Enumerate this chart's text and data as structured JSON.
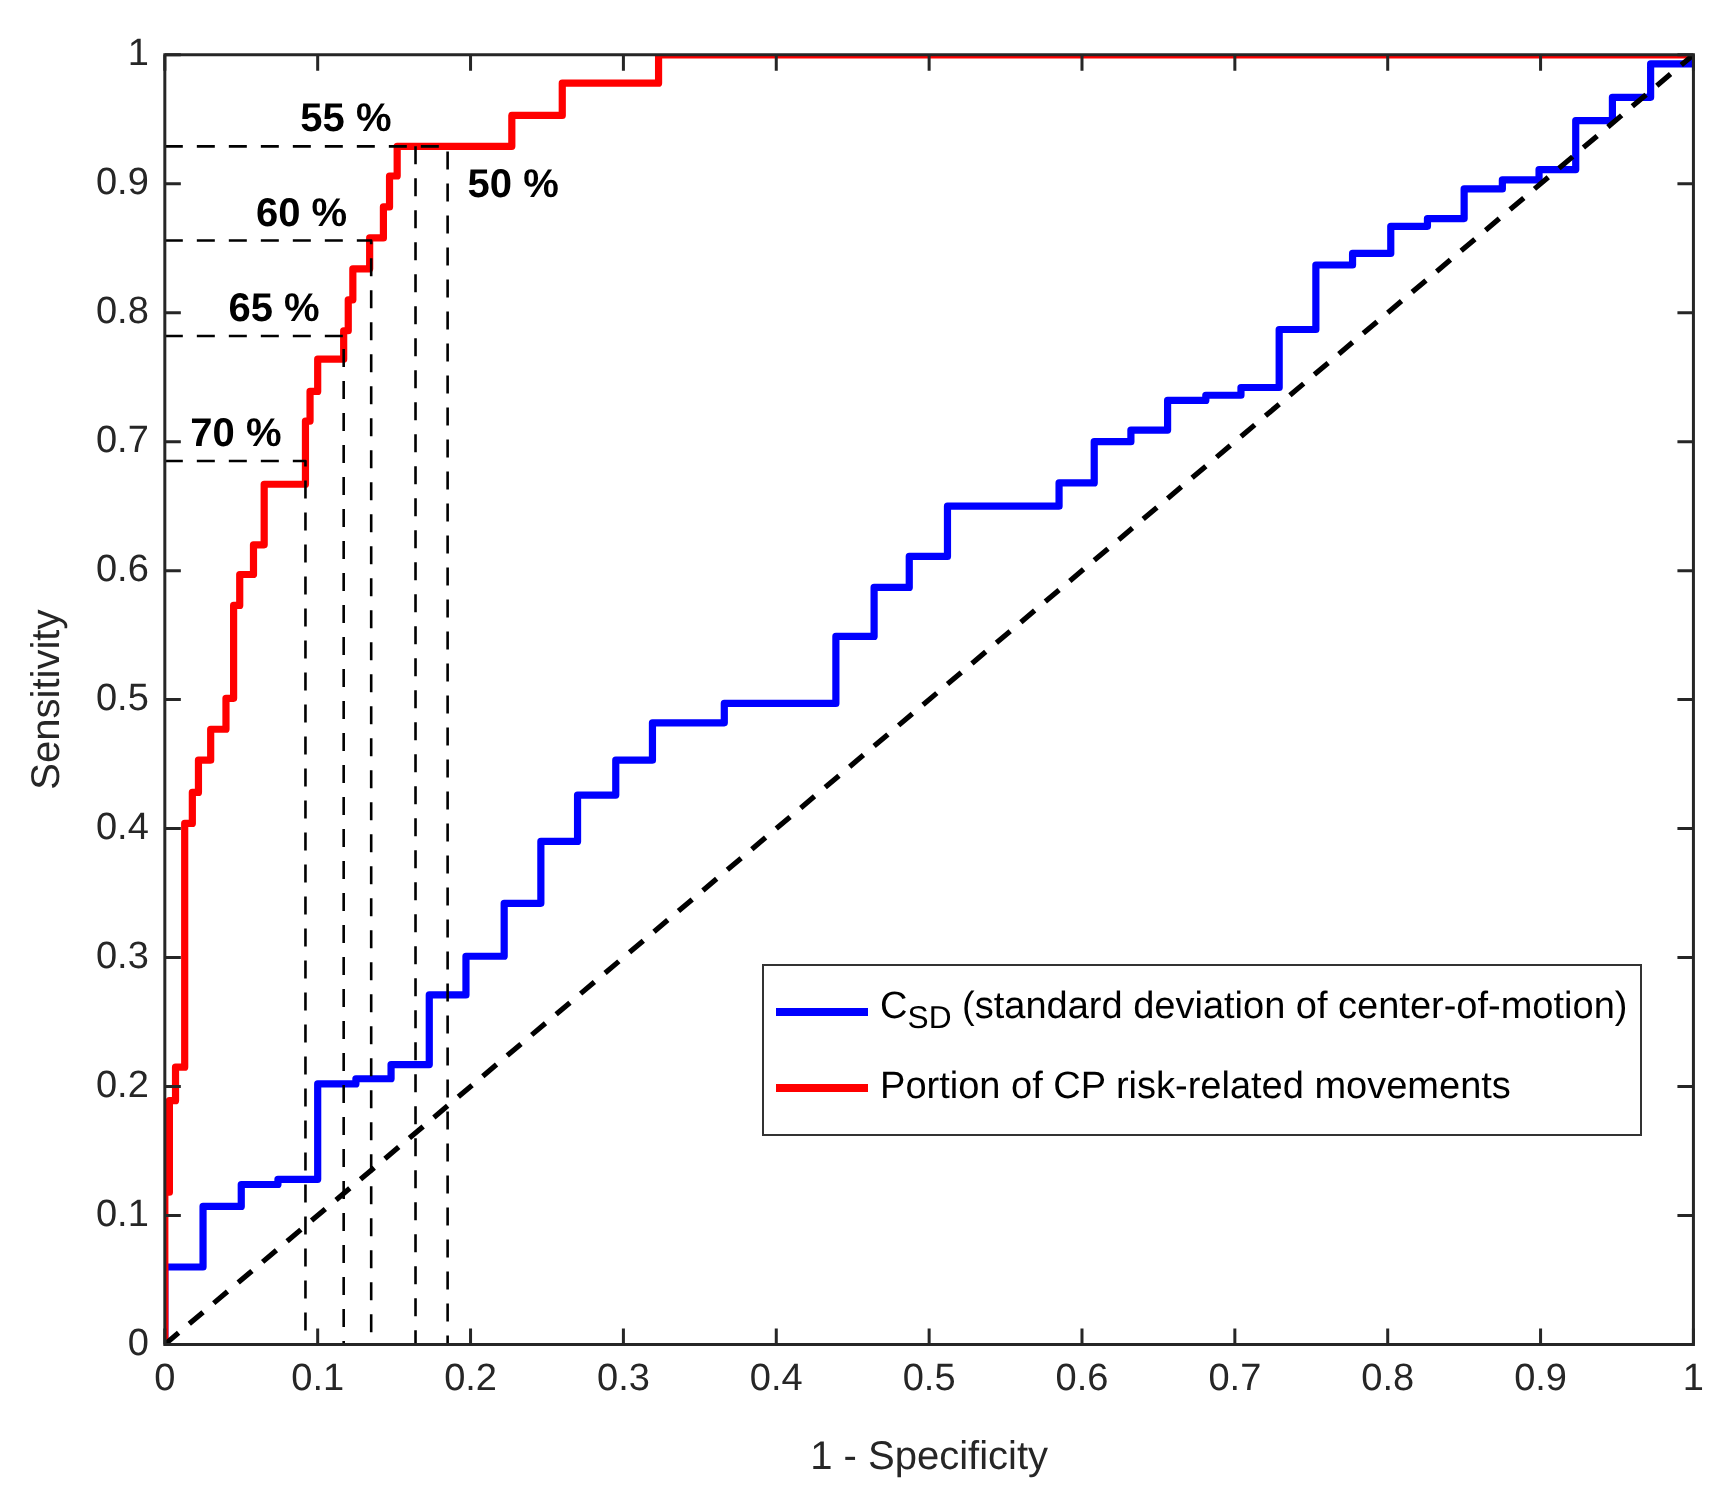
{
  "chart_data": {
    "type": "step",
    "xlabel": "1 - Specificity",
    "ylabel": "Sensitivity",
    "xlim": [
      0,
      1
    ],
    "ylim": [
      0,
      1
    ],
    "xticks": [
      0,
      0.1,
      0.2,
      0.3,
      0.4,
      0.5,
      0.6,
      0.7,
      0.8,
      0.9,
      1
    ],
    "yticks": [
      0,
      0.1,
      0.2,
      0.3,
      0.4,
      0.5,
      0.6,
      0.7,
      0.8,
      0.9,
      1
    ],
    "grid": false,
    "legend": "bottom right",
    "marker": "none",
    "line_style": "solid",
    "series": [
      {
        "name": "C$_{SD}$ (standard deviation of center-of-motion)",
        "color": "#0000ff",
        "x": [
          0,
          0,
          0.025,
          0.05,
          0.074,
          0.1,
          0.125,
          0.148,
          0.173,
          0.197,
          0.222,
          0.246,
          0.27,
          0.295,
          0.319,
          0.366,
          0.439,
          0.464,
          0.487,
          0.512,
          0.585,
          0.608,
          0.632,
          0.656,
          0.681,
          0.704,
          0.729,
          0.753,
          0.777,
          0.802,
          0.826,
          0.85,
          0.875,
          0.899,
          0.923,
          0.947,
          0.972,
          1
        ],
        "values": [
          0,
          0.06,
          0.107,
          0.124,
          0.128,
          0.202,
          0.206,
          0.217,
          0.271,
          0.301,
          0.342,
          0.39,
          0.426,
          0.453,
          0.482,
          0.497,
          0.549,
          0.587,
          0.611,
          0.65,
          0.668,
          0.7,
          0.709,
          0.732,
          0.736,
          0.742,
          0.787,
          0.837,
          0.846,
          0.867,
          0.873,
          0.896,
          0.903,
          0.911,
          0.949,
          0.967,
          0.993,
          1
        ]
      },
      {
        "name": "Portion of CP risk-related movements",
        "color": "#ff0000",
        "x": [
          0,
          0,
          0.003,
          0.007,
          0.013,
          0.018,
          0.022,
          0.03,
          0.04,
          0.045,
          0.049,
          0.058,
          0.065,
          0.092,
          0.095,
          0.1,
          0.117,
          0.12,
          0.123,
          0.134,
          0.143,
          0.147,
          0.152,
          0.227,
          0.26,
          0.323,
          1
        ],
        "values": [
          0,
          0.118,
          0.189,
          0.215,
          0.404,
          0.428,
          0.453,
          0.477,
          0.501,
          0.573,
          0.597,
          0.62,
          0.667,
          0.716,
          0.739,
          0.764,
          0.786,
          0.81,
          0.834,
          0.858,
          0.882,
          0.906,
          0.929,
          0.953,
          0.978,
          1,
          1
        ]
      },
      {
        "type": "line",
        "color": "#000000",
        "line_style": "dashed",
        "x": [
          0,
          1
        ],
        "values": [
          0,
          1
        ]
      },
      {
        "type": "line",
        "color": "#000000",
        "line_style": "dashed",
        "x": [
          0,
          0.092,
          0.092
        ],
        "values": [
          0.685,
          0.685,
          0
        ]
      },
      {
        "type": "line",
        "color": "#000000",
        "line_style": "dashed",
        "x": [
          0,
          0.117,
          0.117
        ],
        "values": [
          0.782,
          0.782,
          0
        ]
      },
      {
        "type": "line",
        "color": "#000000",
        "line_style": "dashed",
        "x": [
          0,
          0.135,
          0.135
        ],
        "values": [
          0.856,
          0.856,
          0
        ]
      },
      {
        "type": "line",
        "color": "#000000",
        "line_style": "dashed",
        "x": [
          0,
          0.185,
          0.185
        ],
        "values": [
          0.929,
          0.929,
          0
        ]
      },
      {
        "type": "line",
        "color": "#000000",
        "line_style": "dashed",
        "x": [
          0.164,
          0.164
        ],
        "values": [
          0.929,
          0
        ]
      }
    ],
    "annotations": [
      {
        "text": "70 %",
        "x": 0.092,
        "y": 0.685
      },
      {
        "text": "65 %",
        "x": 0.117,
        "y": 0.782
      },
      {
        "text": "60 %",
        "x": 0.135,
        "y": 0.856
      },
      {
        "text": "55 %",
        "x": 0.164,
        "y": 0.929
      },
      {
        "text": "50 %",
        "x": 0.185,
        "y": 0.929
      }
    ]
  }
}
